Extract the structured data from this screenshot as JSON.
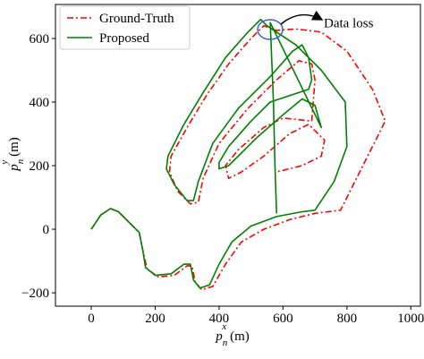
{
  "chart_data": {
    "type": "line",
    "xlabel": {
      "base": "p",
      "sub": "n",
      "sup": "x",
      "unit": "(m)"
    },
    "ylabel": {
      "base": "p",
      "sub": "n",
      "sup": "y",
      "unit": "(m)"
    },
    "annotation": "Data loss",
    "legend": "upper left",
    "xlim": [
      -112,
      1030
    ],
    "ylim": [
      -242,
      707
    ],
    "xticks": [
      0,
      200,
      400,
      600,
      800,
      1000
    ],
    "yticks": [
      {
        "value": -200,
        "label": "−200"
      },
      0,
      200,
      400,
      600
    ],
    "series": [
      {
        "name": "Ground-Truth",
        "color": "#ff0000",
        "dash": "dashdot",
        "x": [
          0,
          30,
          60,
          85,
          120,
          150,
          160,
          175,
          210,
          260,
          300,
          315,
          325,
          345,
          380,
          420,
          470,
          540,
          620,
          700,
          780,
          850,
          920,
          880,
          800,
          720,
          640,
          580,
          540,
          500,
          430,
          360,
          300,
          250,
          245,
          270,
          310,
          335,
          350,
          400,
          490,
          580,
          650,
          690,
          700,
          690,
          600,
          540,
          460,
          420,
          430,
          470,
          540,
          620,
          680,
          730,
          720,
          660,
          580
        ],
        "y": [
          0,
          45,
          65,
          55,
          20,
          -10,
          -60,
          -125,
          -150,
          -145,
          -115,
          -115,
          -165,
          -190,
          -180,
          -110,
          -40,
          0,
          30,
          50,
          60,
          200,
          340,
          440,
          560,
          620,
          630,
          625,
          640,
          600,
          520,
          420,
          320,
          230,
          180,
          120,
          80,
          85,
          160,
          270,
          380,
          470,
          530,
          520,
          470,
          340,
          350,
          320,
          250,
          200,
          160,
          180,
          230,
          300,
          330,
          280,
          230,
          200,
          180
        ]
      },
      {
        "name": "Proposed",
        "color": "#008000",
        "dash": "solid",
        "x": [
          0,
          30,
          60,
          85,
          120,
          150,
          160,
          170,
          200,
          250,
          290,
          310,
          320,
          340,
          370,
          400,
          440,
          500,
          580,
          660,
          700,
          760,
          800,
          795,
          720,
          640,
          580,
          550,
          530,
          490,
          420,
          350,
          290,
          240,
          235,
          260,
          300,
          320,
          335,
          380,
          460,
          560,
          630,
          660,
          680,
          690,
          680,
          620,
          560,
          500,
          430,
          400,
          400,
          430,
          520,
          600,
          660,
          700,
          720,
          560,
          570,
          575,
          580
        ],
        "y": [
          0,
          45,
          65,
          55,
          20,
          -10,
          -60,
          -120,
          -145,
          -140,
          -110,
          -110,
          -160,
          -185,
          -175,
          -110,
          -40,
          10,
          40,
          55,
          60,
          150,
          260,
          400,
          500,
          580,
          620,
          640,
          660,
          620,
          540,
          430,
          330,
          230,
          190,
          140,
          90,
          90,
          150,
          270,
          380,
          480,
          560,
          580,
          540,
          470,
          440,
          420,
          400,
          340,
          260,
          210,
          190,
          200,
          290,
          360,
          410,
          390,
          320,
          650,
          400,
          200,
          50
        ]
      }
    ]
  }
}
